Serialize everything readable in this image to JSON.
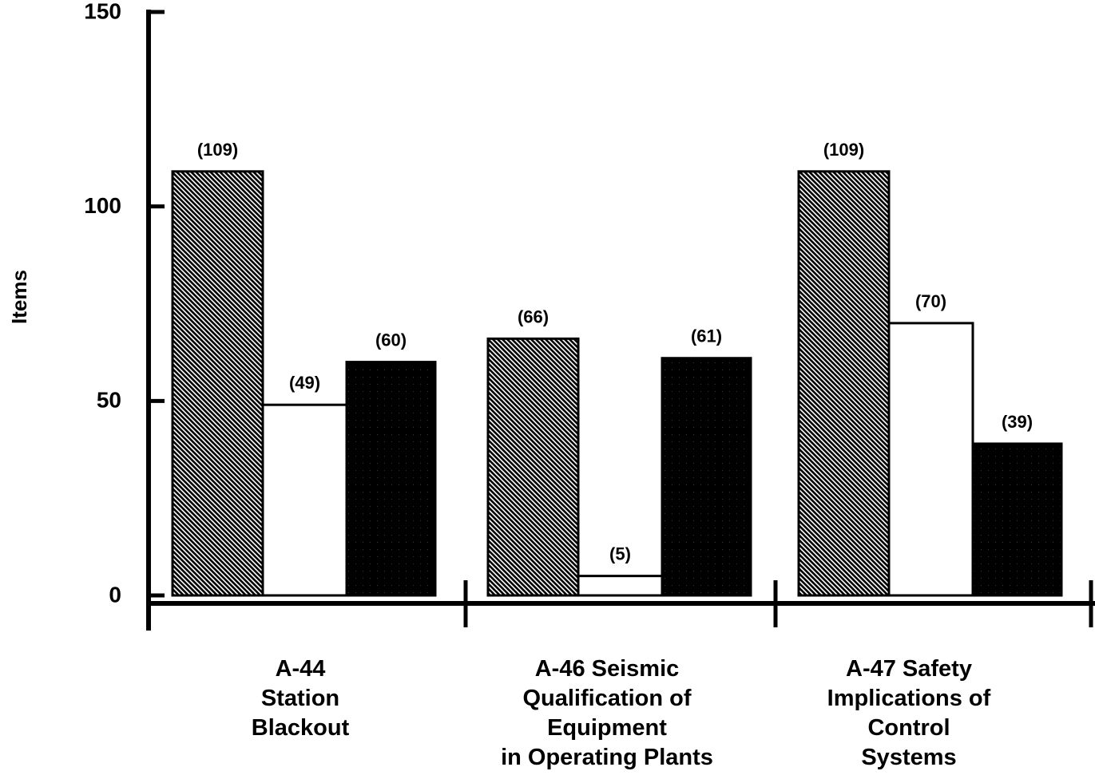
{
  "chart_data": {
    "type": "bar",
    "ylabel": "Items",
    "xlabel": "",
    "ylim": [
      0,
      150
    ],
    "yticks": [
      0,
      50,
      100,
      150
    ],
    "grid": false,
    "categories": [
      [
        "A-44",
        "Station",
        "Blackout"
      ],
      [
        "A-46 Seismic",
        "Qualification of",
        "Equipment",
        "in Operating Plants"
      ],
      [
        "A-47 Safety",
        "Implications of",
        "Control",
        "Systems"
      ]
    ],
    "series": [
      {
        "values": [
          109,
          66,
          109
        ],
        "value_labels": [
          "(109)",
          "(66)",
          "(109)"
        ],
        "fill": "hatch"
      },
      {
        "values": [
          49,
          5,
          70
        ],
        "value_labels": [
          "(49)",
          "(5)",
          "(70)"
        ],
        "fill": "#ffffff"
      },
      {
        "values": [
          60,
          61,
          39
        ],
        "value_labels": [
          "(60)",
          "(61)",
          "(39)"
        ],
        "fill": "#000000"
      }
    ]
  }
}
